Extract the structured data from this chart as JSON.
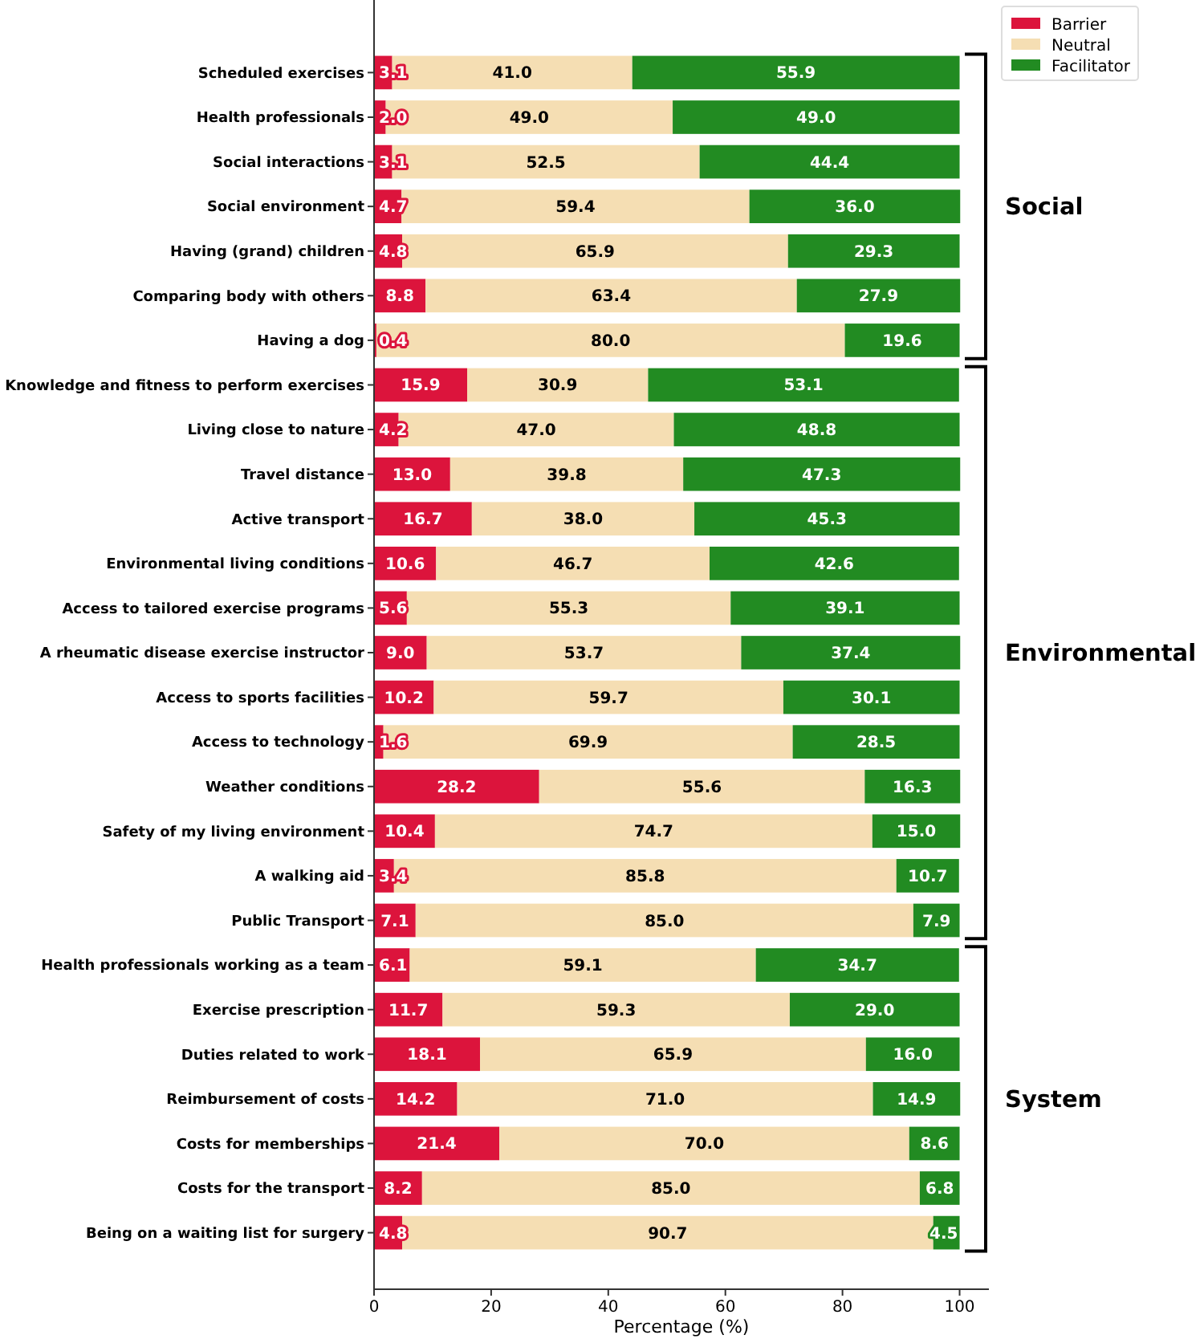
{
  "chart_data": {
    "type": "bar",
    "orientation": "horizontal",
    "stacked": true,
    "xlabel": "Percentage (%)",
    "categories": [
      "Scheduled exercises",
      "Health professionals",
      "Social interactions",
      "Social environment",
      "Having (grand) children",
      "Comparing body with others",
      "Having a dog",
      "Knowledge and fitness to perform exercises",
      "Living close to nature",
      "Travel distance",
      "Active transport",
      "Environmental living conditions",
      "Access to tailored exercise programs",
      "A rheumatic disease exercise instructor",
      "Access to sports facilities",
      "Access to technology",
      "Weather conditions",
      "Safety of my living environment",
      "A walking aid",
      "Public Transport",
      "Health professionals working as a team",
      "Exercise prescription",
      "Duties related to work",
      "Reimbursement of costs",
      "Costs for memberships",
      "Costs for the transport",
      "Being on a waiting list for surgery"
    ],
    "series": [
      {
        "name": "Barrier",
        "color": "#dc143c",
        "values": [
          3.1,
          2.0,
          3.1,
          4.7,
          4.8,
          8.8,
          0.4,
          15.9,
          4.2,
          13.0,
          16.7,
          10.6,
          5.6,
          9.0,
          10.2,
          1.6,
          28.2,
          10.4,
          3.4,
          7.1,
          6.1,
          11.7,
          18.1,
          14.2,
          21.4,
          8.2,
          4.8
        ],
        "value_labels": [
          "3.1",
          "2.0",
          "3.1",
          "4.7",
          "4.8",
          "8.8",
          "0.4",
          "15.9",
          "4.2",
          "13.0",
          "16.7",
          "10.6",
          "5.6",
          "9.0",
          "10.2",
          "1.6",
          "28.2",
          "10.4",
          "3.4",
          "7.1",
          "6.1",
          "11.7",
          "18.1",
          "14.2",
          "21.4",
          "8.2",
          "4.8"
        ]
      },
      {
        "name": "Neutral",
        "color": "#f5deb3",
        "values": [
          41.0,
          49.0,
          52.5,
          59.4,
          65.9,
          63.4,
          80.0,
          30.9,
          47.0,
          39.8,
          38.0,
          46.7,
          55.3,
          53.7,
          59.7,
          69.9,
          55.6,
          74.7,
          85.8,
          85.0,
          59.1,
          59.3,
          65.9,
          71.0,
          70.0,
          85.0,
          90.7
        ],
        "value_labels": [
          "41.0",
          "49.0",
          "52.5",
          "59.4",
          "65.9",
          "63.4",
          "80.0",
          "30.9",
          "47.0",
          "39.8",
          "38.0",
          "46.7",
          "55.3",
          "53.7",
          "59.7",
          "69.9",
          "55.6",
          "74.7",
          "85.8",
          "85.0",
          "59.1",
          "59.3",
          "65.9",
          "71.0",
          "70.0",
          "85.0",
          "90.7"
        ]
      },
      {
        "name": "Facilitator",
        "color": "#228b22",
        "values": [
          55.9,
          49.0,
          44.4,
          36.0,
          29.3,
          27.9,
          19.6,
          53.1,
          48.8,
          47.3,
          45.3,
          42.6,
          39.1,
          37.4,
          30.1,
          28.5,
          16.3,
          15.0,
          10.7,
          7.9,
          34.7,
          29.0,
          16.0,
          14.9,
          8.6,
          6.8,
          4.5
        ],
        "value_labels": [
          "55.9",
          "49.0",
          "44.4",
          "36.0",
          "29.3",
          "27.9",
          "19.6",
          "53.1",
          "48.8",
          "47.3",
          "45.3",
          "42.6",
          "39.1",
          "37.4",
          "30.1",
          "28.5",
          "16.3",
          "15.0",
          "10.7",
          "7.9",
          "34.7",
          "29.0",
          "16.0",
          "14.9",
          "8.6",
          "6.8",
          "4.5"
        ]
      }
    ],
    "xlim": [
      0,
      105
    ],
    "xticks": [
      0,
      20,
      40,
      60,
      80,
      100
    ],
    "legend": "top right",
    "annotations": [
      "Social",
      "Environmental",
      "System"
    ]
  }
}
